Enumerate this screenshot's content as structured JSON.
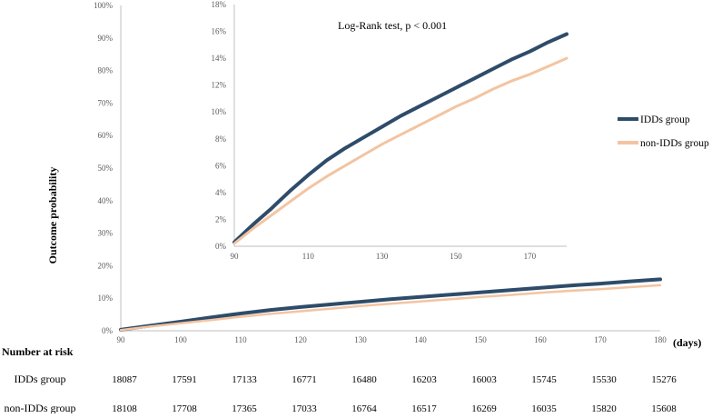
{
  "chart_data": [
    {
      "type": "line",
      "ylabel": "Outcome probability",
      "x_unit_label": "(days)",
      "xlim": [
        90,
        180
      ],
      "ylim": [
        0,
        1
      ],
      "x_ticks": [
        90,
        100,
        110,
        120,
        130,
        140,
        150,
        160,
        170,
        180
      ],
      "y_ticks": [
        "0%",
        "10%",
        "20%",
        "30%",
        "40%",
        "50%",
        "60%",
        "70%",
        "80%",
        "90%",
        "100%"
      ],
      "legend_position": "right",
      "grid": false,
      "series": [
        {
          "name": "IDDs group",
          "color": "#2e4c6a",
          "x": [
            90,
            95,
            100,
            105,
            110,
            115,
            120,
            125,
            130,
            135,
            140,
            145,
            150,
            155,
            160,
            165,
            170,
            175,
            180
          ],
          "y": [
            0.003,
            0.016,
            0.028,
            0.041,
            0.053,
            0.064,
            0.073,
            0.081,
            0.089,
            0.097,
            0.104,
            0.111,
            0.118,
            0.125,
            0.132,
            0.139,
            0.145,
            0.152,
            0.158
          ]
        },
        {
          "name": "non-IDDs group",
          "color": "#f3c4a1",
          "x": [
            90,
            95,
            100,
            105,
            110,
            115,
            120,
            125,
            130,
            135,
            140,
            145,
            150,
            155,
            160,
            165,
            170,
            175,
            180
          ],
          "y": [
            0.002,
            0.013,
            0.023,
            0.033,
            0.043,
            0.052,
            0.06,
            0.068,
            0.076,
            0.083,
            0.09,
            0.097,
            0.104,
            0.11,
            0.117,
            0.123,
            0.128,
            0.134,
            0.14
          ]
        }
      ],
      "risk_table": {
        "title": "Number at risk",
        "rows": [
          {
            "label": "IDDs group",
            "values": [
              "18087",
              "17591",
              "17133",
              "16771",
              "16480",
              "16203",
              "16003",
              "15745",
              "15530",
              "15276"
            ]
          },
          {
            "label": "non-IDDs group",
            "values": [
              "18108",
              "17708",
              "17365",
              "17033",
              "16764",
              "16517",
              "16269",
              "16035",
              "15820",
              "15608"
            ]
          }
        ]
      }
    },
    {
      "type": "line",
      "annotation": "Log-Rank test, p < 0.001",
      "xlim": [
        90,
        180
      ],
      "ylim": [
        0,
        0.18
      ],
      "x_ticks": [
        90,
        110,
        130,
        150,
        170
      ],
      "y_ticks": [
        "0%",
        "2%",
        "4%",
        "6%",
        "8%",
        "10%",
        "12%",
        "14%",
        "16%",
        "18%"
      ],
      "grid": false
    }
  ]
}
